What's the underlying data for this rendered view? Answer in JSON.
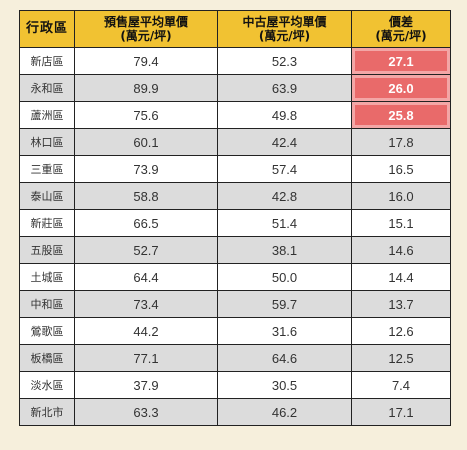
{
  "header": {
    "district": "行政區",
    "new_price": [
      "預售屋平均單價",
      "(萬元/坪)"
    ],
    "old_price": [
      "中古屋平均單價",
      "(萬元/坪)"
    ],
    "difference": [
      "價差",
      "(萬元/坪)"
    ]
  },
  "rows": [
    {
      "district": "新店區",
      "new": "79.4",
      "old": "52.3",
      "diff": "27.1",
      "highlight": true
    },
    {
      "district": "永和區",
      "new": "89.9",
      "old": "63.9",
      "diff": "26.0",
      "highlight": true
    },
    {
      "district": "蘆洲區",
      "new": "75.6",
      "old": "49.8",
      "diff": "25.8",
      "highlight": true
    },
    {
      "district": "林口區",
      "new": "60.1",
      "old": "42.4",
      "diff": "17.8",
      "highlight": false
    },
    {
      "district": "三重區",
      "new": "73.9",
      "old": "57.4",
      "diff": "16.5",
      "highlight": false
    },
    {
      "district": "泰山區",
      "new": "58.8",
      "old": "42.8",
      "diff": "16.0",
      "highlight": false
    },
    {
      "district": "新莊區",
      "new": "66.5",
      "old": "51.4",
      "diff": "15.1",
      "highlight": false
    },
    {
      "district": "五股區",
      "new": "52.7",
      "old": "38.1",
      "diff": "14.6",
      "highlight": false
    },
    {
      "district": "土城區",
      "new": "64.4",
      "old": "50.0",
      "diff": "14.4",
      "highlight": false
    },
    {
      "district": "中和區",
      "new": "73.4",
      "old": "59.7",
      "diff": "13.7",
      "highlight": false
    },
    {
      "district": "鶯歌區",
      "new": "44.2",
      "old": "31.6",
      "diff": "12.6",
      "highlight": false
    },
    {
      "district": "板橋區",
      "new": "77.1",
      "old": "64.6",
      "diff": "12.5",
      "highlight": false
    },
    {
      "district": "淡水區",
      "new": "37.9",
      "old": "30.5",
      "diff": "7.4",
      "highlight": false
    },
    {
      "district": "新北市",
      "new": "63.3",
      "old": "46.2",
      "diff": "17.1",
      "highlight": false
    }
  ],
  "colors": {
    "header_bg": "#f1c232",
    "highlight_bg": "#e96a6a",
    "page_bg": "#f6efdc",
    "alt_row_bg": "#dcdcdc"
  }
}
